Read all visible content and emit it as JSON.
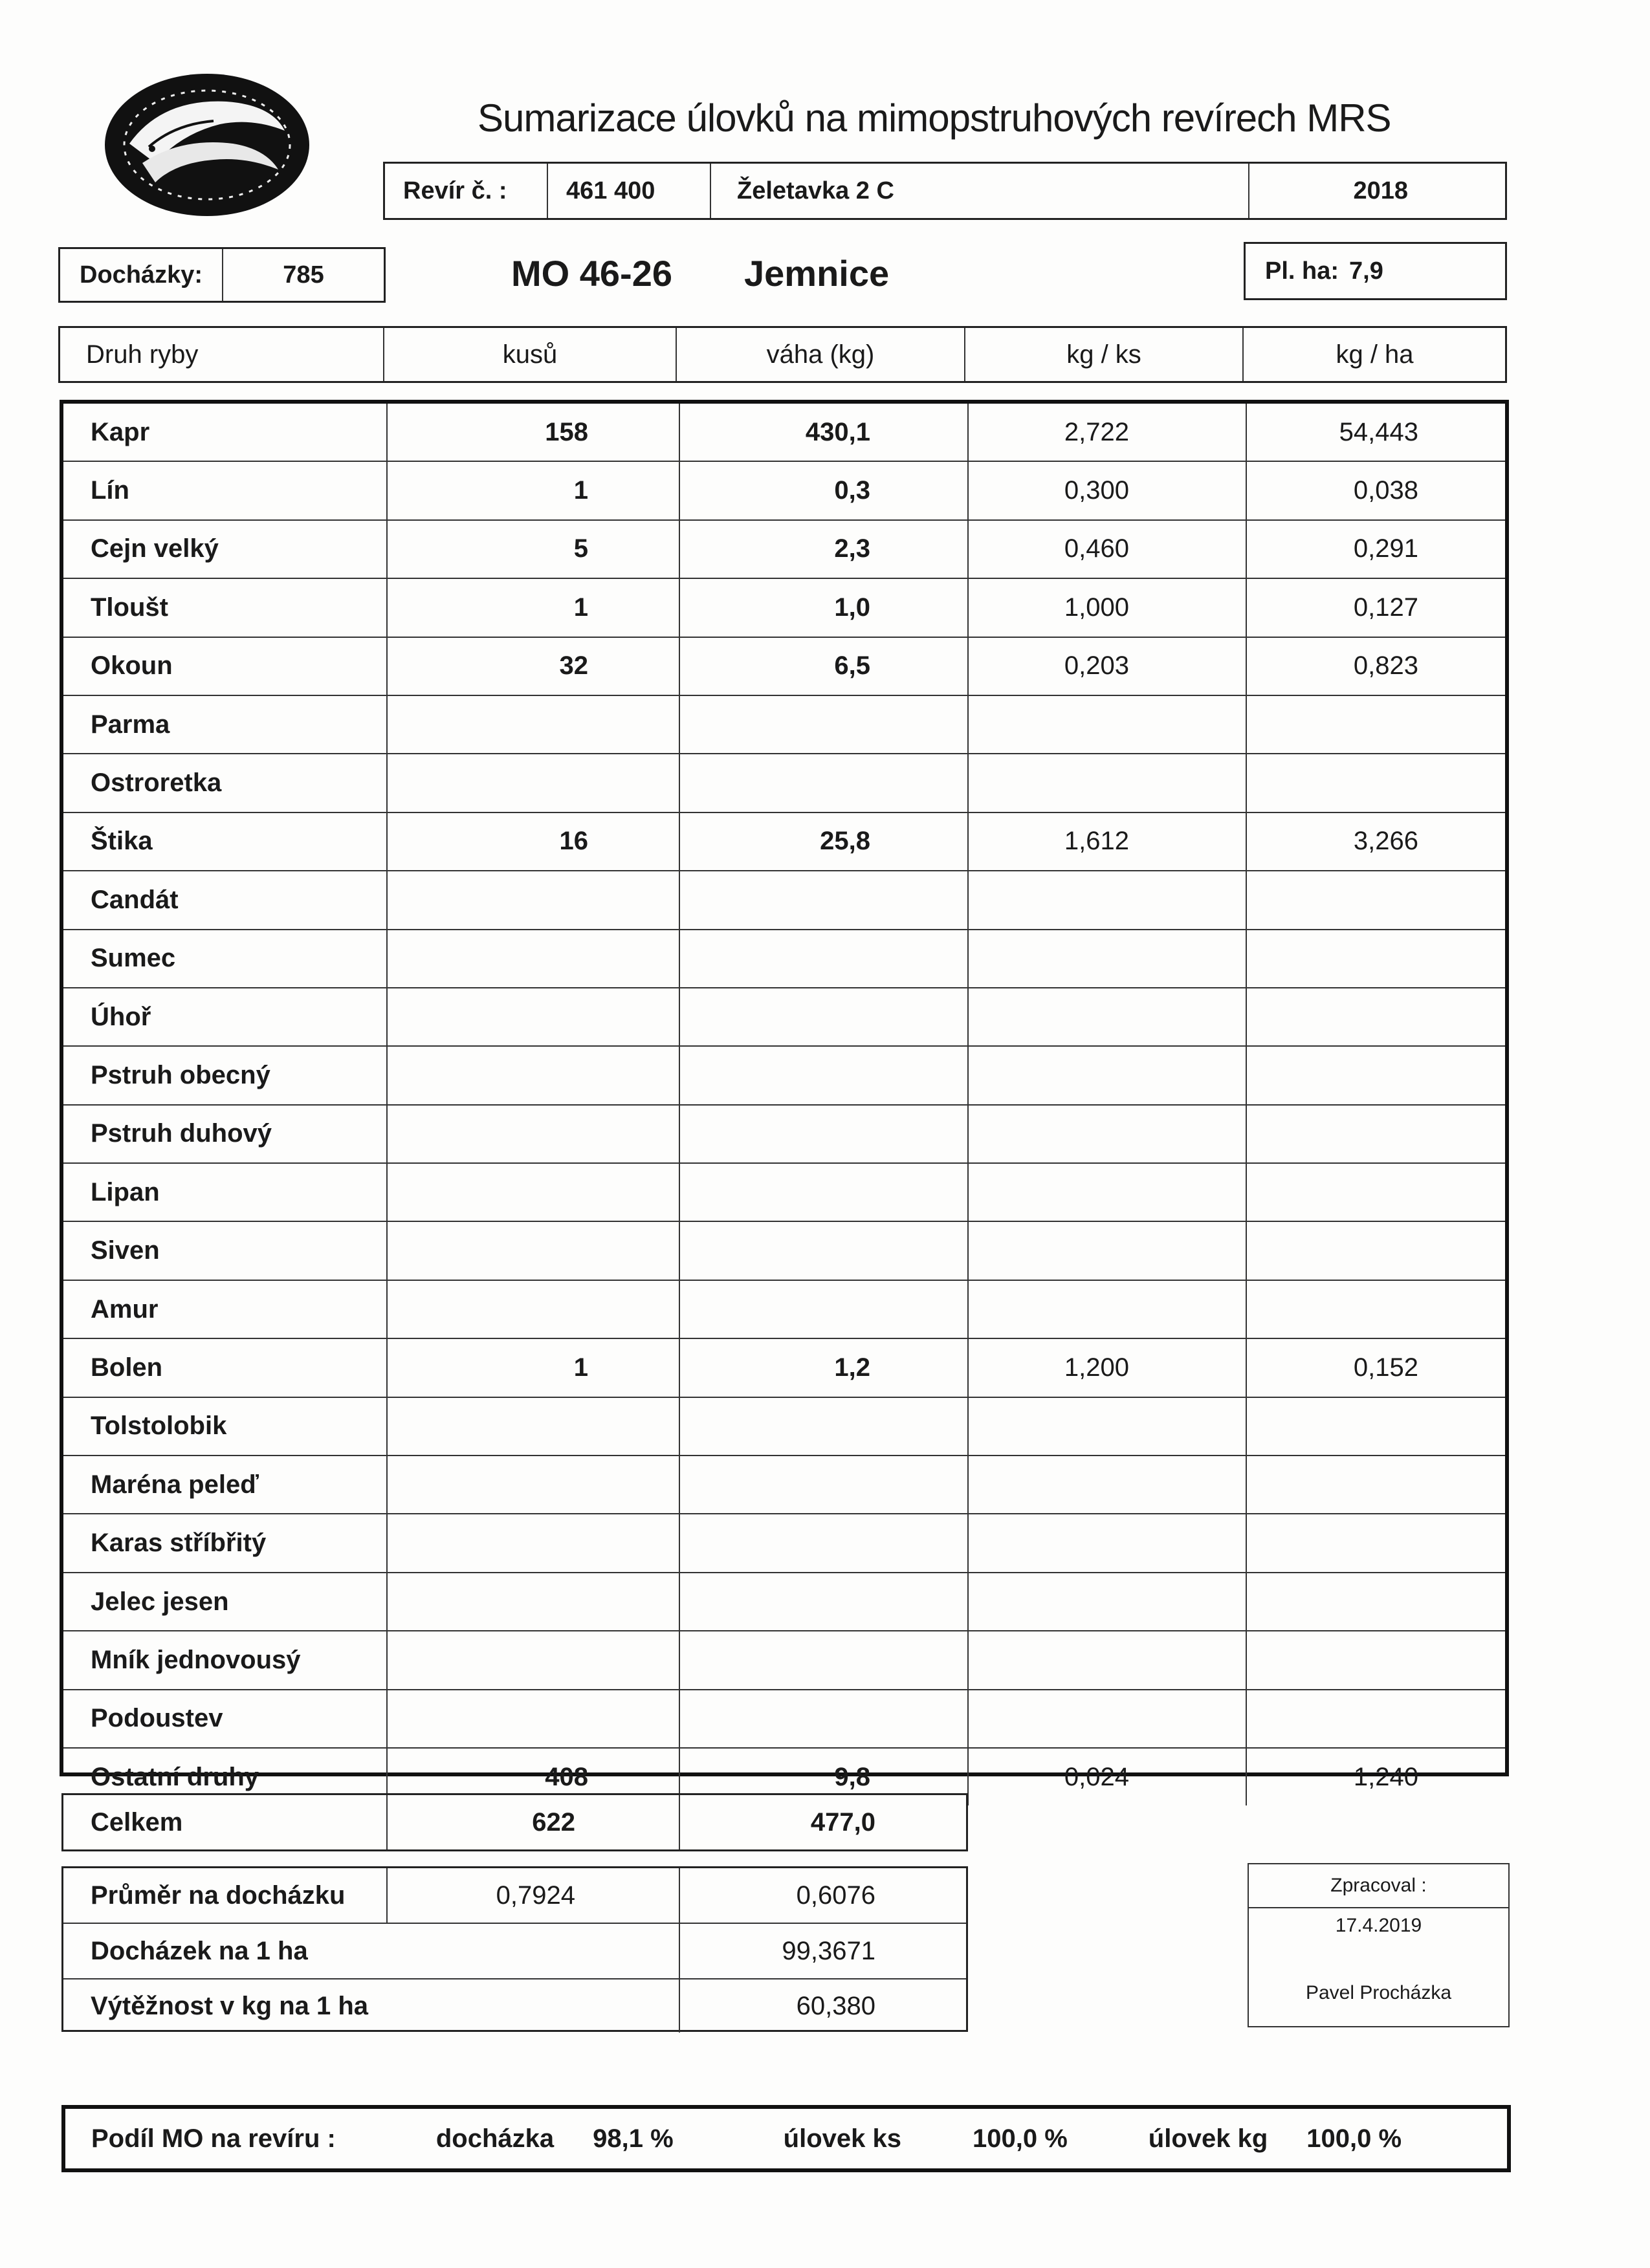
{
  "title": "Sumarizace úlovků na mimopstruhových revírech MRS",
  "revir": {
    "label": "Revír č. :",
    "number": "461 400",
    "name": "Želetavka 2 C",
    "year": "2018"
  },
  "dochazky": {
    "label": "Docházky:",
    "value": "785"
  },
  "organization": {
    "code": "MO 46-26",
    "name": "Jemnice"
  },
  "area": {
    "label": "Pl. ha:",
    "value": "7,9"
  },
  "columns": [
    "Druh ryby",
    "kusů",
    "váha (kg)",
    "kg / ks",
    "kg / ha"
  ],
  "rows": [
    {
      "name": "Kapr",
      "kusu": "158",
      "vaha": "430,1",
      "kg_ks": "2,722",
      "kg_ha": "54,443"
    },
    {
      "name": "Lín",
      "kusu": "1",
      "vaha": "0,3",
      "kg_ks": "0,300",
      "kg_ha": "0,038"
    },
    {
      "name": "Cejn velký",
      "kusu": "5",
      "vaha": "2,3",
      "kg_ks": "0,460",
      "kg_ha": "0,291"
    },
    {
      "name": "Tloušt",
      "kusu": "1",
      "vaha": "1,0",
      "kg_ks": "1,000",
      "kg_ha": "0,127"
    },
    {
      "name": "Okoun",
      "kusu": "32",
      "vaha": "6,5",
      "kg_ks": "0,203",
      "kg_ha": "0,823"
    },
    {
      "name": "Parma",
      "kusu": "",
      "vaha": "",
      "kg_ks": "",
      "kg_ha": ""
    },
    {
      "name": "Ostroretka",
      "kusu": "",
      "vaha": "",
      "kg_ks": "",
      "kg_ha": ""
    },
    {
      "name": "Štika",
      "kusu": "16",
      "vaha": "25,8",
      "kg_ks": "1,612",
      "kg_ha": "3,266"
    },
    {
      "name": "Candát",
      "kusu": "",
      "vaha": "",
      "kg_ks": "",
      "kg_ha": ""
    },
    {
      "name": "Sumec",
      "kusu": "",
      "vaha": "",
      "kg_ks": "",
      "kg_ha": ""
    },
    {
      "name": "Úhoř",
      "kusu": "",
      "vaha": "",
      "kg_ks": "",
      "kg_ha": ""
    },
    {
      "name": "Pstruh obecný",
      "kusu": "",
      "vaha": "",
      "kg_ks": "",
      "kg_ha": ""
    },
    {
      "name": "Pstruh duhový",
      "kusu": "",
      "vaha": "",
      "kg_ks": "",
      "kg_ha": ""
    },
    {
      "name": "Lipan",
      "kusu": "",
      "vaha": "",
      "kg_ks": "",
      "kg_ha": ""
    },
    {
      "name": "Siven",
      "kusu": "",
      "vaha": "",
      "kg_ks": "",
      "kg_ha": ""
    },
    {
      "name": "Amur",
      "kusu": "",
      "vaha": "",
      "kg_ks": "",
      "kg_ha": ""
    },
    {
      "name": "Bolen",
      "kusu": "1",
      "vaha": "1,2",
      "kg_ks": "1,200",
      "kg_ha": "0,152"
    },
    {
      "name": "Tolstolobik",
      "kusu": "",
      "vaha": "",
      "kg_ks": "",
      "kg_ha": ""
    },
    {
      "name": "Maréna peleď",
      "kusu": "",
      "vaha": "",
      "kg_ks": "",
      "kg_ha": ""
    },
    {
      "name": "Karas stříbřitý",
      "kusu": "",
      "vaha": "",
      "kg_ks": "",
      "kg_ha": ""
    },
    {
      "name": "Jelec jesen",
      "kusu": "",
      "vaha": "",
      "kg_ks": "",
      "kg_ha": ""
    },
    {
      "name": "Mník jednovousý",
      "kusu": "",
      "vaha": "",
      "kg_ks": "",
      "kg_ha": ""
    },
    {
      "name": "Podoustev",
      "kusu": "",
      "vaha": "",
      "kg_ks": "",
      "kg_ha": ""
    },
    {
      "name": "Ostatní druhy",
      "kusu": "408",
      "vaha": "9,8",
      "kg_ks": "0,024",
      "kg_ha": "1,240"
    }
  ],
  "total": {
    "label": "Celkem",
    "kusu": "622",
    "vaha": "477,0"
  },
  "stats": {
    "prumer_label": "Průměr na docházku",
    "prumer_kusu": "0,7924",
    "prumer_vaha": "0,6076",
    "dochazek_label": "Docházek na 1 ha",
    "dochazek_value": "99,3671",
    "vytez_label": "Výtěžnost v kg na 1 ha",
    "vytez_value": "60,380"
  },
  "processed": {
    "label": "Zpracoval :",
    "date": "17.4.2019",
    "name": "Pavel Procházka"
  },
  "share": {
    "label": "Podíl MO na revíru :",
    "dochazka_label": "docházka",
    "dochazka_value": "98,1 %",
    "ks_label": "úlovek ks",
    "ks_value": "100,0 %",
    "kg_label": "úlovek kg",
    "kg_value": "100,0 %"
  }
}
